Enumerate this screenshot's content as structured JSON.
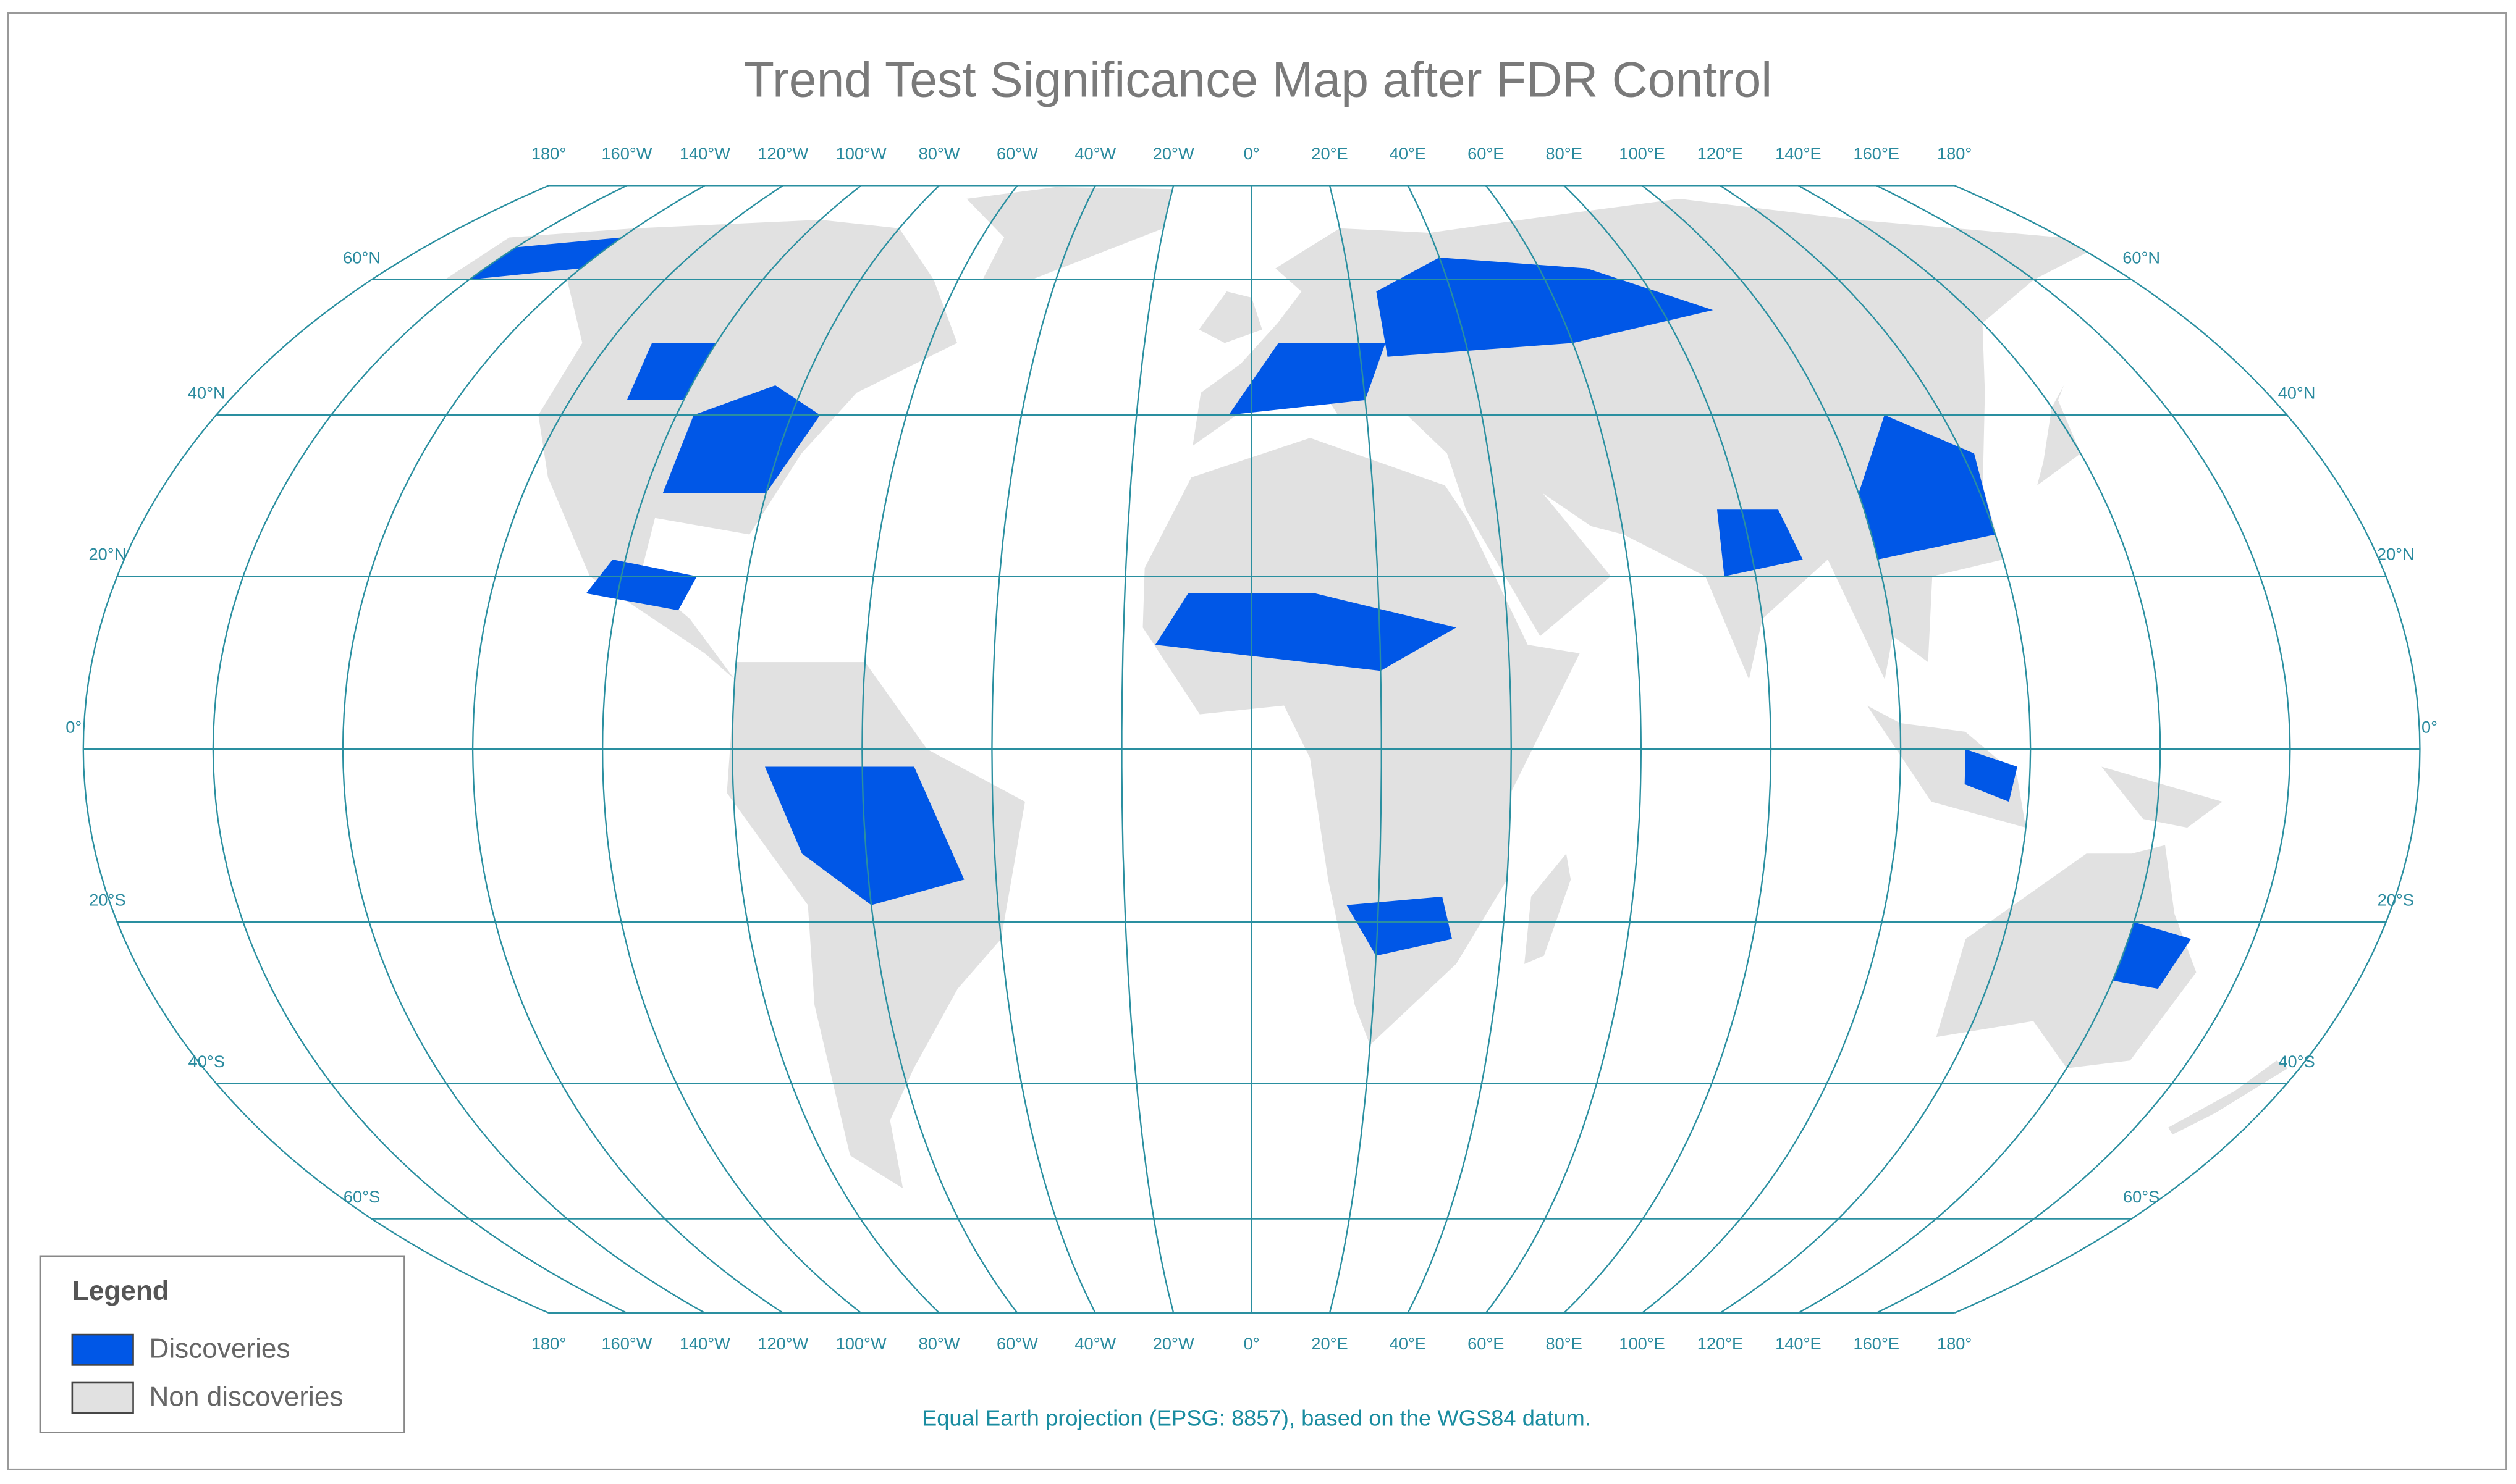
{
  "title": "Trend Test Significance Map after FDR Control",
  "graticule": {
    "top_labels": [
      "180°",
      "160°W",
      "140°W",
      "120°W",
      "100°W",
      "80°W",
      "60°W",
      "40°W",
      "20°W",
      "0°",
      "20°E",
      "40°E",
      "60°E",
      "80°E",
      "100°E",
      "120°E",
      "140°E",
      "160°E",
      "180°"
    ],
    "bottom_labels": [
      "180°",
      "160°W",
      "140°W",
      "120°W",
      "100°W",
      "80°W",
      "60°W",
      "40°W",
      "20°W",
      "0°",
      "20°E",
      "40°E",
      "60°E",
      "80°E",
      "100°E",
      "120°E",
      "140°E",
      "160°E",
      "180°"
    ],
    "left_labels": [
      "60°N",
      "40°N",
      "20°N",
      "0°",
      "20°S",
      "40°S",
      "60°S"
    ],
    "right_labels": [
      "60°N",
      "40°N",
      "20°N",
      "0°",
      "20°S",
      "40°S",
      "60°S"
    ]
  },
  "legend": {
    "title": "Legend",
    "items": [
      "Discoveries",
      "Non discoveries"
    ]
  },
  "footnote": "Equal Earth projection (EPSG: 8857), based on the WGS84 datum."
}
